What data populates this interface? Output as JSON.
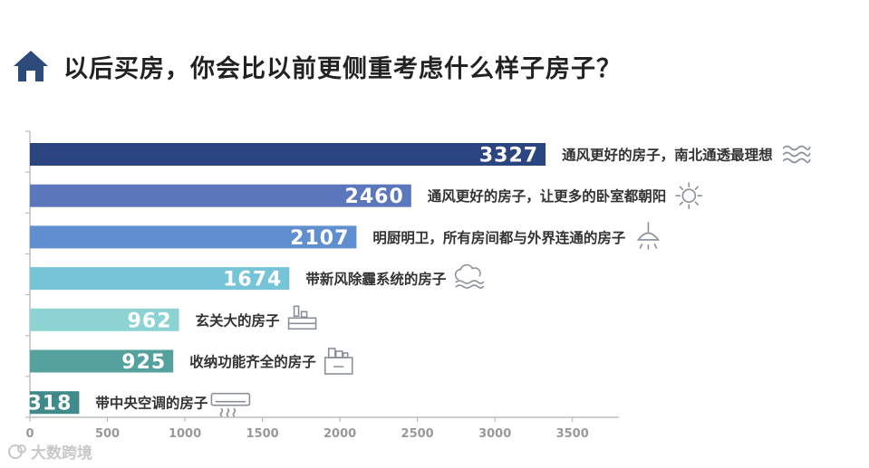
{
  "title": "以后买房，你会比以前更侧重考虑什么样子房子？",
  "watermark": "大数跨境",
  "colors": {
    "title": "#222222",
    "icon": "#2d4a7a",
    "axis": "#b0b0b0",
    "tick_label": "#999999",
    "value_label": "#ffffff",
    "category_label": "#333333",
    "line_icon": "#8a9099"
  },
  "chart_data": {
    "type": "bar",
    "orientation": "horizontal",
    "title": "以后买房，你会比以前更侧重考虑什么样子房子？",
    "xlim": [
      0,
      3800
    ],
    "x_ticks": [
      0,
      500,
      1000,
      1500,
      2000,
      2500,
      3000,
      3500
    ],
    "grid": false,
    "bars": [
      {
        "label": "通风更好的房子，南北通透最理想",
        "value": 3327,
        "color": "#2b4580",
        "icon": "wind-icon"
      },
      {
        "label": "通风更好的房子，让更多的卧室都朝阳",
        "value": 2460,
        "color": "#5d77bd",
        "icon": "sun-icon"
      },
      {
        "label": "明厨明卫，所有房间都与外界连通的房子",
        "value": 2107,
        "color": "#5f8fcf",
        "icon": "ceiling-lamp-icon"
      },
      {
        "label": "带新风除霾系统的房子",
        "value": 1674,
        "color": "#76c4d8",
        "icon": "cloud-fresh-air-icon"
      },
      {
        "label": "玄关大的房子",
        "value": 962,
        "color": "#8dd3d3",
        "icon": "entrance-cabinet-icon"
      },
      {
        "label": "收纳功能齐全的房子",
        "value": 925,
        "color": "#55a19e",
        "icon": "storage-box-icon"
      },
      {
        "label": "带中央空调的房子",
        "value": 318,
        "color": "#3f8a8a",
        "icon": "air-conditioner-icon"
      }
    ]
  }
}
